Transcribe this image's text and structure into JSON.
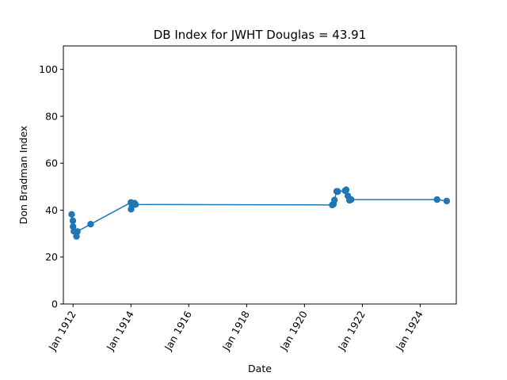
{
  "chart_data": {
    "type": "line",
    "title": "DB Index for JWHT Douglas = 43.91",
    "xlabel": "Date",
    "ylabel": "Don Bradman Index",
    "ylim": [
      0,
      110
    ],
    "xlim": [
      "1911-09-01",
      "1925-04-01"
    ],
    "yticks": [
      0,
      20,
      40,
      60,
      80,
      100
    ],
    "xticks": [
      {
        "date": "1912-01-01",
        "label": "Jan 1912"
      },
      {
        "date": "1914-01-01",
        "label": "Jan 1914"
      },
      {
        "date": "1916-01-01",
        "label": "Jan 1916"
      },
      {
        "date": "1918-01-01",
        "label": "Jan 1918"
      },
      {
        "date": "1920-01-01",
        "label": "Jan 1920"
      },
      {
        "date": "1922-01-01",
        "label": "Jan 1922"
      },
      {
        "date": "1924-01-01",
        "label": "Jan 1924"
      }
    ],
    "grid": false,
    "color": "#1f77b4",
    "series": [
      {
        "x": [
          "1911-12-15",
          "1911-12-30",
          "1912-01-01",
          "1912-01-12",
          "1912-02-13",
          "1912-02-25",
          "1912-08-10",
          "1914-01-01",
          "1914-01-03",
          "1914-01-15",
          "1914-02-14",
          "1914-02-28",
          "1920-12-17",
          "1921-01-01",
          "1921-01-14",
          "1921-02-11",
          "1921-02-25",
          "1921-05-28",
          "1921-06-11",
          "1921-07-02",
          "1921-07-23",
          "1921-08-13",
          "1924-08-01",
          "1924-12-01"
        ],
        "y": [
          38.2,
          35.5,
          33.0,
          31.0,
          28.8,
          30.9,
          34.0,
          43.3,
          40.4,
          41.9,
          43.0,
          42.4,
          42.2,
          42.5,
          44.3,
          48.0,
          47.9,
          48.3,
          48.7,
          46.1,
          44.2,
          44.5,
          44.5,
          43.9
        ]
      }
    ]
  }
}
